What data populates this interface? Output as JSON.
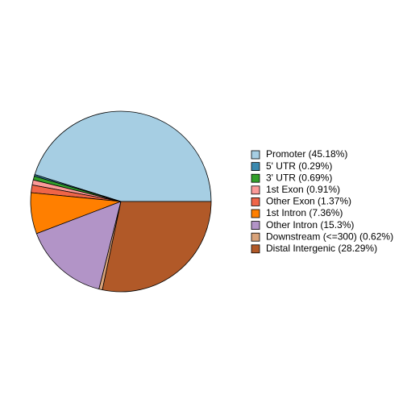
{
  "chart_data": {
    "type": "pie",
    "categories": [
      "Promoter (45.18%)",
      "5' UTR (0.29%)",
      "3' UTR (0.69%)",
      "1st Exon (0.91%)",
      "Other Exon (1.37%)",
      "1st Intron (7.36%)",
      "Other Intron (15.3%)",
      "Downstream (<=300) (0.62%)",
      "Distal Intergenic (28.29%)"
    ],
    "values": [
      45.18,
      0.29,
      0.69,
      0.91,
      1.37,
      7.36,
      15.3,
      0.62,
      28.29
    ],
    "colors": [
      "#A6CEE3",
      "#3B8AB0",
      "#33A02C",
      "#FB9A99",
      "#EF6548",
      "#FF7F00",
      "#B294C7",
      "#D9A37A",
      "#B15928"
    ],
    "legend": "right"
  }
}
